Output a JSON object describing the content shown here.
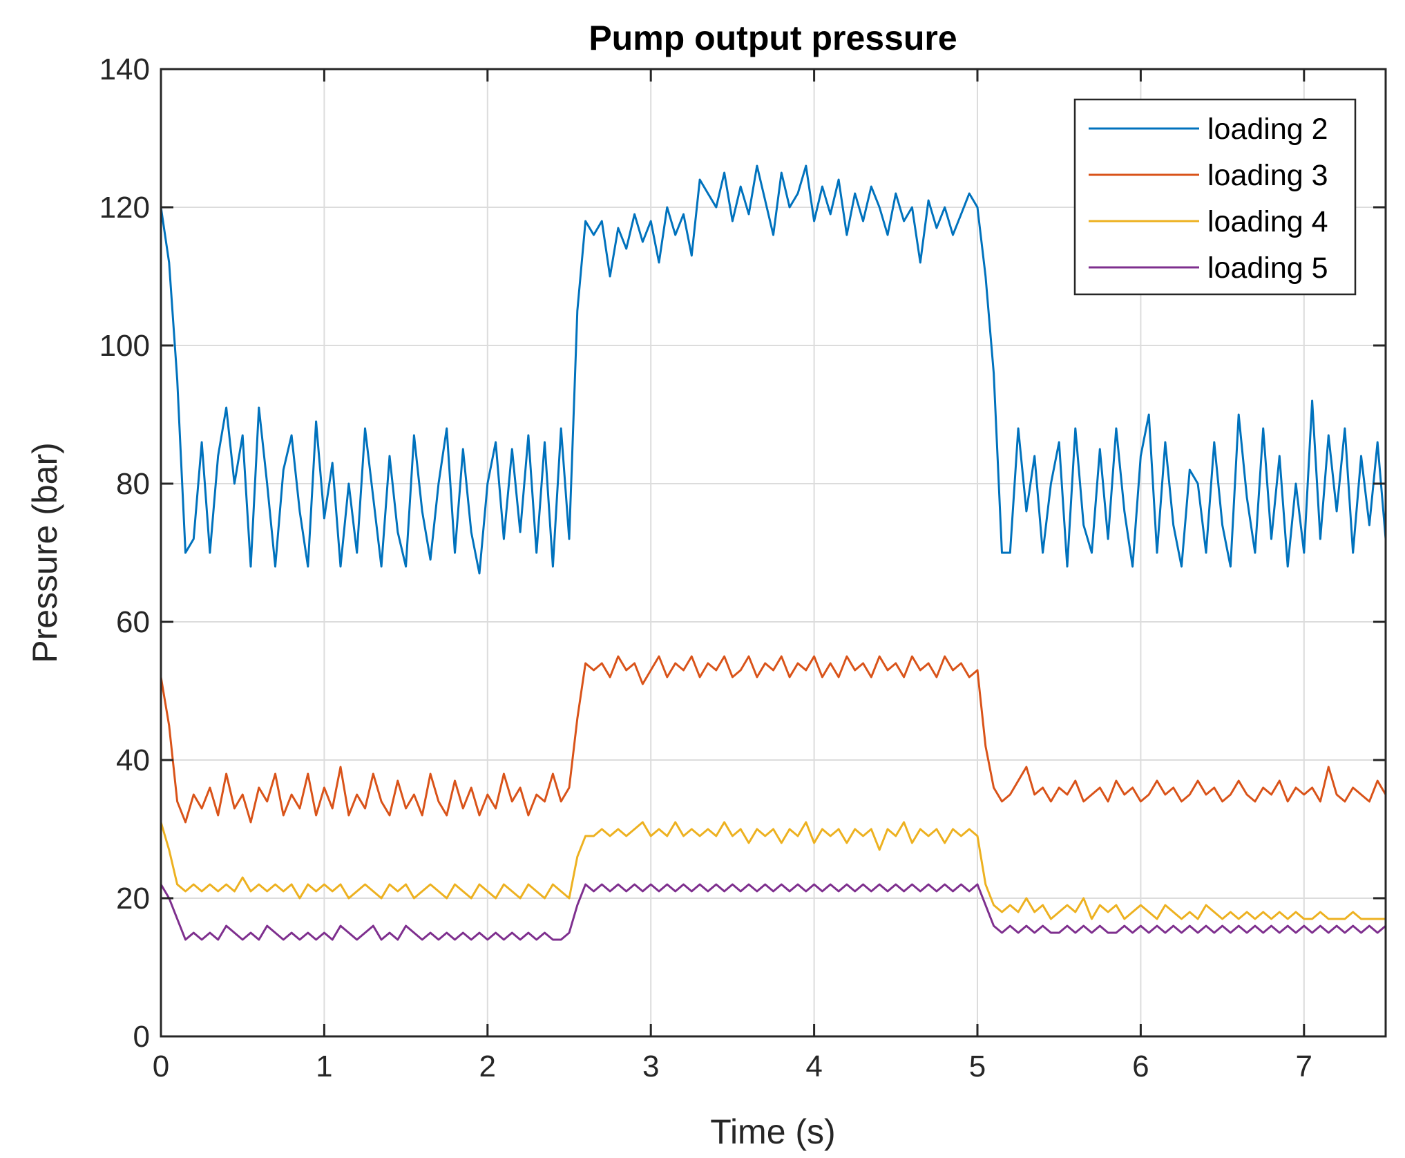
{
  "chart_data": {
    "type": "line",
    "title": "Pump output pressure",
    "xlabel": "Time (s)",
    "ylabel": "Pressure (bar)",
    "xlim": [
      0,
      7.5
    ],
    "ylim": [
      0,
      140
    ],
    "xticks": [
      0,
      1,
      2,
      3,
      4,
      5,
      6,
      7
    ],
    "yticks": [
      0,
      20,
      40,
      60,
      80,
      100,
      120,
      140
    ],
    "xtick_labels": [
      "0",
      "1",
      "2",
      "3",
      "4",
      "5",
      "6",
      "7"
    ],
    "ytick_labels": [
      "0",
      "20",
      "40",
      "60",
      "80",
      "100",
      "120",
      "140"
    ],
    "grid": true,
    "legend_position": "top-right",
    "series": [
      {
        "name": "loading 2",
        "color": "#0072BD",
        "x": [
          0,
          0.05,
          0.1,
          0.15,
          0.2,
          0.25,
          0.3,
          0.35,
          0.4,
          0.45,
          0.5,
          0.55,
          0.6,
          0.65,
          0.7,
          0.75,
          0.8,
          0.85,
          0.9,
          0.95,
          1.0,
          1.05,
          1.1,
          1.15,
          1.2,
          1.25,
          1.3,
          1.35,
          1.4,
          1.45,
          1.5,
          1.55,
          1.6,
          1.65,
          1.7,
          1.75,
          1.8,
          1.85,
          1.9,
          1.95,
          2.0,
          2.05,
          2.1,
          2.15,
          2.2,
          2.25,
          2.3,
          2.35,
          2.4,
          2.45,
          2.5,
          2.55,
          2.6,
          2.65,
          2.7,
          2.75,
          2.8,
          2.85,
          2.9,
          2.95,
          3.0,
          3.05,
          3.1,
          3.15,
          3.2,
          3.25,
          3.3,
          3.35,
          3.4,
          3.45,
          3.5,
          3.55,
          3.6,
          3.65,
          3.7,
          3.75,
          3.8,
          3.85,
          3.9,
          3.95,
          4.0,
          4.05,
          4.1,
          4.15,
          4.2,
          4.25,
          4.3,
          4.35,
          4.4,
          4.45,
          4.5,
          4.55,
          4.6,
          4.65,
          4.7,
          4.75,
          4.8,
          4.85,
          4.9,
          4.95,
          5.0,
          5.05,
          5.1,
          5.15,
          5.2,
          5.25,
          5.3,
          5.35,
          5.4,
          5.45,
          5.5,
          5.55,
          5.6,
          5.65,
          5.7,
          5.75,
          5.8,
          5.85,
          5.9,
          5.95,
          6.0,
          6.05,
          6.1,
          6.15,
          6.2,
          6.25,
          6.3,
          6.35,
          6.4,
          6.45,
          6.5,
          6.55,
          6.6,
          6.65,
          6.7,
          6.75,
          6.8,
          6.85,
          6.9,
          6.95,
          7.0,
          7.05,
          7.1,
          7.15,
          7.2,
          7.25,
          7.3,
          7.35,
          7.4,
          7.45,
          7.5
        ],
        "y": [
          120,
          112,
          95,
          70,
          72,
          86,
          70,
          84,
          91,
          80,
          87,
          68,
          91,
          80,
          68,
          82,
          87,
          76,
          68,
          89,
          75,
          83,
          68,
          80,
          70,
          88,
          78,
          68,
          84,
          73,
          68,
          87,
          76,
          69,
          80,
          88,
          70,
          85,
          73,
          67,
          80,
          86,
          72,
          85,
          73,
          87,
          70,
          86,
          68,
          88,
          72,
          105,
          118,
          116,
          118,
          110,
          117,
          114,
          119,
          115,
          118,
          112,
          120,
          116,
          119,
          113,
          124,
          122,
          120,
          125,
          118,
          123,
          119,
          126,
          121,
          116,
          125,
          120,
          122,
          126,
          118,
          123,
          119,
          124,
          116,
          122,
          118,
          123,
          120,
          116,
          122,
          118,
          120,
          112,
          121,
          117,
          120,
          116,
          119,
          122,
          120,
          110,
          96,
          70,
          70,
          88,
          76,
          84,
          70,
          80,
          86,
          68,
          88,
          74,
          70,
          85,
          72,
          88,
          76,
          68,
          84,
          90,
          70,
          86,
          74,
          68,
          82,
          80,
          70,
          86,
          74,
          68,
          90,
          78,
          70,
          88,
          72,
          84,
          68,
          80,
          70,
          92,
          72,
          87,
          76,
          88,
          70,
          84,
          74,
          86,
          72
        ]
      },
      {
        "name": "loading 3",
        "color": "#D95319",
        "x": [
          0,
          0.05,
          0.1,
          0.15,
          0.2,
          0.25,
          0.3,
          0.35,
          0.4,
          0.45,
          0.5,
          0.55,
          0.6,
          0.65,
          0.7,
          0.75,
          0.8,
          0.85,
          0.9,
          0.95,
          1.0,
          1.05,
          1.1,
          1.15,
          1.2,
          1.25,
          1.3,
          1.35,
          1.4,
          1.45,
          1.5,
          1.55,
          1.6,
          1.65,
          1.7,
          1.75,
          1.8,
          1.85,
          1.9,
          1.95,
          2.0,
          2.05,
          2.1,
          2.15,
          2.2,
          2.25,
          2.3,
          2.35,
          2.4,
          2.45,
          2.5,
          2.55,
          2.6,
          2.65,
          2.7,
          2.75,
          2.8,
          2.85,
          2.9,
          2.95,
          3.0,
          3.05,
          3.1,
          3.15,
          3.2,
          3.25,
          3.3,
          3.35,
          3.4,
          3.45,
          3.5,
          3.55,
          3.6,
          3.65,
          3.7,
          3.75,
          3.8,
          3.85,
          3.9,
          3.95,
          4.0,
          4.05,
          4.1,
          4.15,
          4.2,
          4.25,
          4.3,
          4.35,
          4.4,
          4.45,
          4.5,
          4.55,
          4.6,
          4.65,
          4.7,
          4.75,
          4.8,
          4.85,
          4.9,
          4.95,
          5.0,
          5.05,
          5.1,
          5.15,
          5.2,
          5.25,
          5.3,
          5.35,
          5.4,
          5.45,
          5.5,
          5.55,
          5.6,
          5.65,
          5.7,
          5.75,
          5.8,
          5.85,
          5.9,
          5.95,
          6.0,
          6.05,
          6.1,
          6.15,
          6.2,
          6.25,
          6.3,
          6.35,
          6.4,
          6.45,
          6.5,
          6.55,
          6.6,
          6.65,
          6.7,
          6.75,
          6.8,
          6.85,
          6.9,
          6.95,
          7.0,
          7.05,
          7.1,
          7.15,
          7.2,
          7.25,
          7.3,
          7.35,
          7.4,
          7.45,
          7.5
        ],
        "y": [
          52,
          45,
          34,
          31,
          35,
          33,
          36,
          32,
          38,
          33,
          35,
          31,
          36,
          34,
          38,
          32,
          35,
          33,
          38,
          32,
          36,
          33,
          39,
          32,
          35,
          33,
          38,
          34,
          32,
          37,
          33,
          35,
          32,
          38,
          34,
          32,
          37,
          33,
          36,
          32,
          35,
          33,
          38,
          34,
          36,
          32,
          35,
          34,
          38,
          34,
          36,
          46,
          54,
          53,
          54,
          52,
          55,
          53,
          54,
          51,
          53,
          55,
          52,
          54,
          53,
          55,
          52,
          54,
          53,
          55,
          52,
          53,
          55,
          52,
          54,
          53,
          55,
          52,
          54,
          53,
          55,
          52,
          54,
          52,
          55,
          53,
          54,
          52,
          55,
          53,
          54,
          52,
          55,
          53,
          54,
          52,
          55,
          53,
          54,
          52,
          53,
          42,
          36,
          34,
          35,
          37,
          39,
          35,
          36,
          34,
          36,
          35,
          37,
          34,
          35,
          36,
          34,
          37,
          35,
          36,
          34,
          35,
          37,
          35,
          36,
          34,
          35,
          37,
          35,
          36,
          34,
          35,
          37,
          35,
          34,
          36,
          35,
          37,
          34,
          36,
          35,
          36,
          34,
          39,
          35,
          34,
          36,
          35,
          34,
          37,
          35
        ]
      },
      {
        "name": "loading 4",
        "color": "#EDB120",
        "x": [
          0,
          0.05,
          0.1,
          0.15,
          0.2,
          0.25,
          0.3,
          0.35,
          0.4,
          0.45,
          0.5,
          0.55,
          0.6,
          0.65,
          0.7,
          0.75,
          0.8,
          0.85,
          0.9,
          0.95,
          1.0,
          1.05,
          1.1,
          1.15,
          1.2,
          1.25,
          1.3,
          1.35,
          1.4,
          1.45,
          1.5,
          1.55,
          1.6,
          1.65,
          1.7,
          1.75,
          1.8,
          1.85,
          1.9,
          1.95,
          2.0,
          2.05,
          2.1,
          2.15,
          2.2,
          2.25,
          2.3,
          2.35,
          2.4,
          2.45,
          2.5,
          2.55,
          2.6,
          2.65,
          2.7,
          2.75,
          2.8,
          2.85,
          2.9,
          2.95,
          3.0,
          3.05,
          3.1,
          3.15,
          3.2,
          3.25,
          3.3,
          3.35,
          3.4,
          3.45,
          3.5,
          3.55,
          3.6,
          3.65,
          3.7,
          3.75,
          3.8,
          3.85,
          3.9,
          3.95,
          4.0,
          4.05,
          4.1,
          4.15,
          4.2,
          4.25,
          4.3,
          4.35,
          4.4,
          4.45,
          4.5,
          4.55,
          4.6,
          4.65,
          4.7,
          4.75,
          4.8,
          4.85,
          4.9,
          4.95,
          5.0,
          5.05,
          5.1,
          5.15,
          5.2,
          5.25,
          5.3,
          5.35,
          5.4,
          5.45,
          5.5,
          5.55,
          5.6,
          5.65,
          5.7,
          5.75,
          5.8,
          5.85,
          5.9,
          5.95,
          6.0,
          6.05,
          6.1,
          6.15,
          6.2,
          6.25,
          6.3,
          6.35,
          6.4,
          6.45,
          6.5,
          6.55,
          6.6,
          6.65,
          6.7,
          6.75,
          6.8,
          6.85,
          6.9,
          6.95,
          7.0,
          7.05,
          7.1,
          7.15,
          7.2,
          7.25,
          7.3,
          7.35,
          7.4,
          7.45,
          7.5
        ],
        "y": [
          31,
          27,
          22,
          21,
          22,
          21,
          22,
          21,
          22,
          21,
          23,
          21,
          22,
          21,
          22,
          21,
          22,
          20,
          22,
          21,
          22,
          21,
          22,
          20,
          21,
          22,
          21,
          20,
          22,
          21,
          22,
          20,
          21,
          22,
          21,
          20,
          22,
          21,
          20,
          22,
          21,
          20,
          22,
          21,
          20,
          22,
          21,
          20,
          22,
          21,
          20,
          26,
          29,
          29,
          30,
          29,
          30,
          29,
          30,
          31,
          29,
          30,
          29,
          31,
          29,
          30,
          29,
          30,
          29,
          31,
          29,
          30,
          28,
          30,
          29,
          30,
          28,
          30,
          29,
          31,
          28,
          30,
          29,
          30,
          28,
          30,
          29,
          30,
          27,
          30,
          29,
          31,
          28,
          30,
          29,
          30,
          28,
          30,
          29,
          30,
          29,
          22,
          19,
          18,
          19,
          18,
          20,
          18,
          19,
          17,
          18,
          19,
          18,
          20,
          17,
          19,
          18,
          19,
          17,
          18,
          19,
          18,
          17,
          19,
          18,
          17,
          18,
          17,
          19,
          18,
          17,
          18,
          17,
          18,
          17,
          18,
          17,
          18,
          17,
          18,
          17,
          17,
          18,
          17,
          17,
          17,
          18,
          17,
          17,
          17,
          17
        ]
      },
      {
        "name": "loading 5",
        "color": "#7E2F8E",
        "x": [
          0,
          0.05,
          0.1,
          0.15,
          0.2,
          0.25,
          0.3,
          0.35,
          0.4,
          0.45,
          0.5,
          0.55,
          0.6,
          0.65,
          0.7,
          0.75,
          0.8,
          0.85,
          0.9,
          0.95,
          1.0,
          1.05,
          1.1,
          1.15,
          1.2,
          1.25,
          1.3,
          1.35,
          1.4,
          1.45,
          1.5,
          1.55,
          1.6,
          1.65,
          1.7,
          1.75,
          1.8,
          1.85,
          1.9,
          1.95,
          2.0,
          2.05,
          2.1,
          2.15,
          2.2,
          2.25,
          2.3,
          2.35,
          2.4,
          2.45,
          2.5,
          2.55,
          2.6,
          2.65,
          2.7,
          2.75,
          2.8,
          2.85,
          2.9,
          2.95,
          3.0,
          3.05,
          3.1,
          3.15,
          3.2,
          3.25,
          3.3,
          3.35,
          3.4,
          3.45,
          3.5,
          3.55,
          3.6,
          3.65,
          3.7,
          3.75,
          3.8,
          3.85,
          3.9,
          3.95,
          4.0,
          4.05,
          4.1,
          4.15,
          4.2,
          4.25,
          4.3,
          4.35,
          4.4,
          4.45,
          4.5,
          4.55,
          4.6,
          4.65,
          4.7,
          4.75,
          4.8,
          4.85,
          4.9,
          4.95,
          5.0,
          5.05,
          5.1,
          5.15,
          5.2,
          5.25,
          5.3,
          5.35,
          5.4,
          5.45,
          5.5,
          5.55,
          5.6,
          5.65,
          5.7,
          5.75,
          5.8,
          5.85,
          5.9,
          5.95,
          6.0,
          6.05,
          6.1,
          6.15,
          6.2,
          6.25,
          6.3,
          6.35,
          6.4,
          6.45,
          6.5,
          6.55,
          6.6,
          6.65,
          6.7,
          6.75,
          6.8,
          6.85,
          6.9,
          6.95,
          7.0,
          7.05,
          7.1,
          7.15,
          7.2,
          7.25,
          7.3,
          7.35,
          7.4,
          7.45,
          7.5
        ],
        "y": [
          22,
          20,
          17,
          14,
          15,
          14,
          15,
          14,
          16,
          15,
          14,
          15,
          14,
          16,
          15,
          14,
          15,
          14,
          15,
          14,
          15,
          14,
          16,
          15,
          14,
          15,
          16,
          14,
          15,
          14,
          16,
          15,
          14,
          15,
          14,
          15,
          14,
          15,
          14,
          15,
          14,
          15,
          14,
          15,
          14,
          15,
          14,
          15,
          14,
          14,
          15,
          19,
          22,
          21,
          22,
          21,
          22,
          21,
          22,
          21,
          22,
          21,
          22,
          21,
          22,
          21,
          22,
          21,
          22,
          21,
          22,
          21,
          22,
          21,
          22,
          21,
          22,
          21,
          22,
          21,
          22,
          21,
          22,
          21,
          22,
          21,
          22,
          21,
          22,
          21,
          22,
          21,
          22,
          21,
          22,
          21,
          22,
          21,
          22,
          21,
          22,
          19,
          16,
          15,
          16,
          15,
          16,
          15,
          16,
          15,
          15,
          16,
          15,
          16,
          15,
          16,
          15,
          15,
          16,
          15,
          16,
          15,
          16,
          15,
          16,
          15,
          16,
          15,
          16,
          15,
          16,
          15,
          16,
          15,
          16,
          15,
          16,
          15,
          16,
          15,
          16,
          15,
          16,
          15,
          16,
          15,
          16,
          15,
          16,
          15,
          16
        ]
      }
    ]
  }
}
